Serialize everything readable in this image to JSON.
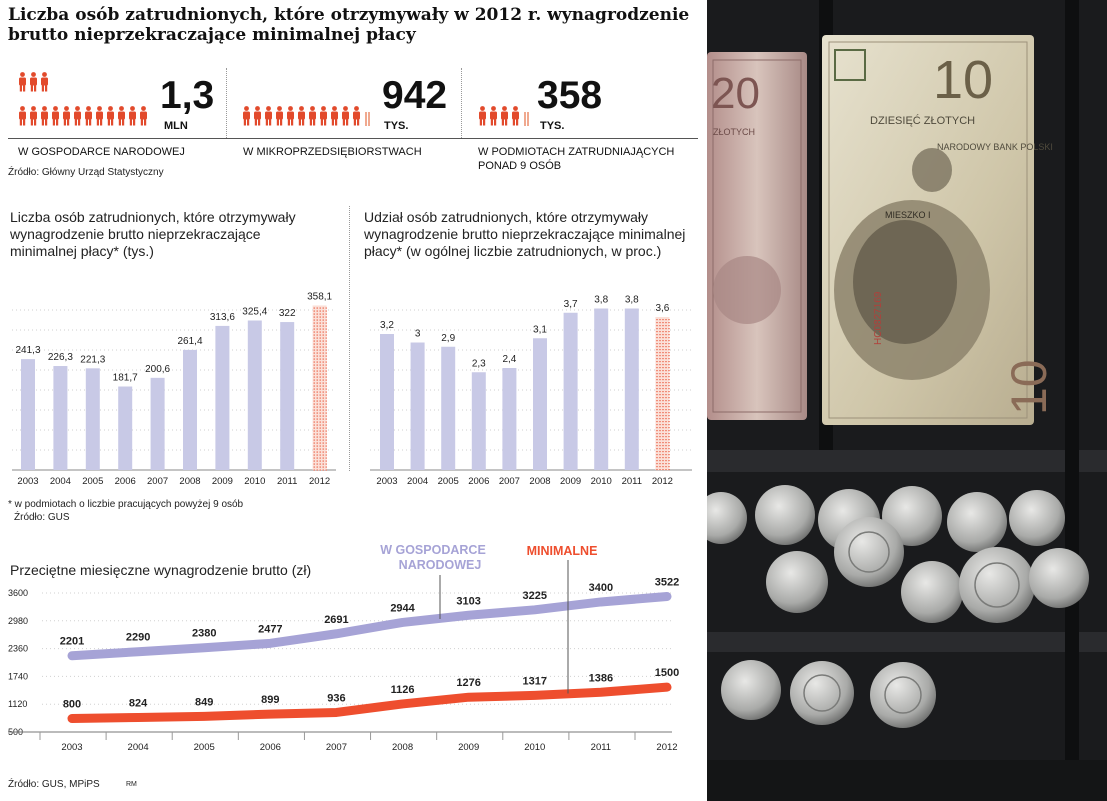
{
  "title": "Liczba osób zatrudnionych, które otrzymywały w 2012 r. wynagrodzenie brutto nieprzekraczające minimalnej płacy",
  "stats": [
    {
      "value": "1,3",
      "unit": "MLN",
      "label": "W GOSPODARCE NARODOWEJ"
    },
    {
      "value": "942",
      "unit": "TYS.",
      "label": "W MIKROPRZEDSIĘBIORSTWACH"
    },
    {
      "value": "358",
      "unit": "TYS.",
      "label": "W PODMIOTACH ZATRUDNIAJĄCYCH PONAD 9 OSÓB"
    }
  ],
  "source_top": "Źródło: Główny Urząd Statystyczny",
  "footnote": "* w podmiotach o liczbie pracujących powyżej 9 osób",
  "source_mid": "Źródło: GUS",
  "source_bottom": "Źródło: GUS, MPiPS",
  "initials": "RM",
  "colors": {
    "bar": "#c8c9e6",
    "bar_highlight": "#e8583d",
    "line_gospodarka": "#a6a3d6",
    "line_minimalne": "#ee4e2e",
    "person_icon": "#e24a2c"
  },
  "chart_data": [
    {
      "type": "bar",
      "title": "Liczba osób zatrudnionych, które otrzymywały wynagrodzenie brutto nieprzekraczające minimalnej płacy* (tys.)",
      "categories": [
        "2003",
        "2004",
        "2005",
        "2006",
        "2007",
        "2008",
        "2009",
        "2010",
        "2011",
        "2012"
      ],
      "values": [
        241.3,
        226.3,
        221.3,
        181.7,
        200.6,
        261.4,
        313.6,
        325.4,
        322,
        358.1
      ],
      "labels": [
        "241,3",
        "226,3",
        "221,3",
        "181,7",
        "200,6",
        "261,4",
        "313,6",
        "325,4",
        "322",
        "358,1"
      ],
      "ylim": [
        0,
        370
      ],
      "highlight_last": true
    },
    {
      "type": "bar",
      "title": "Udział osób zatrudnionych, które otrzymywały wynagrodzenie brutto nieprzekraczające minimalnej płacy* (w ogólnej liczbie zatrudnionych, w proc.)",
      "categories": [
        "2003",
        "2004",
        "2005",
        "2006",
        "2007",
        "2008",
        "2009",
        "2010",
        "2011",
        "2012"
      ],
      "values": [
        3.2,
        3,
        2.9,
        2.3,
        2.4,
        3.1,
        3.7,
        3.8,
        3.8,
        3.6
      ],
      "labels": [
        "3,2",
        "3",
        "2,9",
        "2,3",
        "2,4",
        "3,1",
        "3,7",
        "3,8",
        "3,8",
        "3,6"
      ],
      "ylim": [
        0,
        4.0
      ],
      "highlight_last": true
    },
    {
      "type": "line",
      "title": "Przeciętne miesięczne wynagrodzenie brutto (zł)",
      "x": [
        "2003",
        "2004",
        "2005",
        "2006",
        "2007",
        "2008",
        "2009",
        "2010",
        "2011",
        "2012"
      ],
      "yticks": [
        500,
        1120,
        1740,
        2360,
        2980,
        3600
      ],
      "ylim": [
        500,
        3600
      ],
      "series": [
        {
          "name": "W GOSPODARCE NARODOWEJ",
          "values": [
            2201,
            2290,
            2380,
            2477,
            2691,
            2944,
            3103,
            3225,
            3400,
            3522
          ]
        },
        {
          "name": "MINIMALNE",
          "values": [
            800,
            824,
            849,
            899,
            936,
            1126,
            1276,
            1317,
            1386,
            1500
          ]
        }
      ]
    }
  ],
  "photo": {
    "note_10_value": "10",
    "note_10_words": "DZIESIĘĆ ZŁOTYCH",
    "note_10_serial": "HC0827169",
    "note_10_portrait_text": "MIESZKO I",
    "note_20_value": "20",
    "note_20_words": "ZŁOTYCH",
    "bank_name": "NARODOWY BANK POLSKI"
  }
}
